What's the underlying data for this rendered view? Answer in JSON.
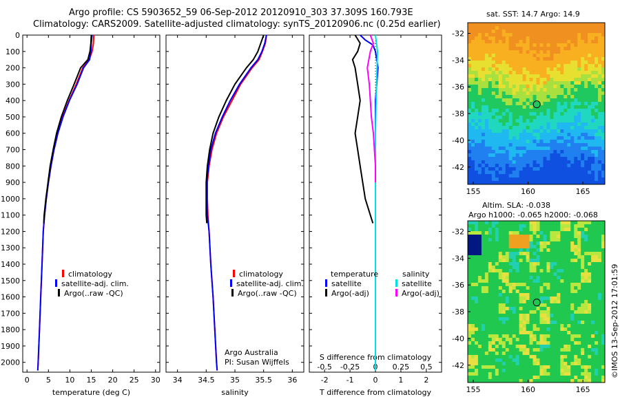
{
  "header": {
    "line1": "Argo profile: CS 5903652_59 06-Sep-2012 20120910_303 37.309S 160.793E",
    "line2": "Climatology: CARS2009. Satellite-adjusted climatology: synTS_20120906.nc (0.25d earlier)"
  },
  "colors": {
    "climatology": "#ff0000",
    "satellite": "#0000ff",
    "argo": "#000000",
    "cyan": "#00e0e0",
    "magenta": "#ff00ff"
  },
  "depth_ticks": [
    "0",
    "100",
    "200",
    "300",
    "400",
    "500",
    "600",
    "700",
    "800",
    "900",
    "1000",
    "1100",
    "1200",
    "1300",
    "1400",
    "1500",
    "1600",
    "1700",
    "1800",
    "1900",
    "2000"
  ],
  "legend_main": {
    "climatology": "climatology",
    "satellite": "satellite-adj. clim.",
    "argo": "Argo(..raw -QC)"
  },
  "credit": {
    "line1": "Argo Australia",
    "line2": "PI: Susan Wijffels"
  },
  "legend_diff": {
    "temperature": "temperature",
    "salinity": "salinity",
    "satellite": "satellite",
    "argo": "Argo(-adj)"
  },
  "chart_data": [
    {
      "type": "line",
      "xlabel": "temperature (deg C)",
      "ylabel": "",
      "xlim": [
        -1,
        31
      ],
      "ylim": [
        2060,
        0
      ],
      "x_ticks": [
        "0",
        "5",
        "10",
        "15",
        "20",
        "25",
        "30"
      ],
      "series": [
        {
          "name": "climatology",
          "points": [
            [
              15.6,
              0
            ],
            [
              15.5,
              50
            ],
            [
              15.2,
              100
            ],
            [
              14.5,
              150
            ],
            [
              13.0,
              200
            ],
            [
              11.5,
              300
            ],
            [
              9.8,
              400
            ],
            [
              8.3,
              500
            ],
            [
              7.2,
              600
            ],
            [
              6.3,
              700
            ],
            [
              5.6,
              800
            ],
            [
              5.0,
              900
            ],
            [
              4.5,
              1000
            ],
            [
              4.1,
              1100
            ],
            [
              3.8,
              1200
            ],
            [
              3.5,
              1400
            ],
            [
              3.2,
              1600
            ],
            [
              2.9,
              1800
            ],
            [
              2.6,
              2000
            ],
            [
              2.5,
              2050
            ]
          ]
        },
        {
          "name": "satellite-adj. clim.",
          "points": [
            [
              15.2,
              0
            ],
            [
              15.0,
              50
            ],
            [
              14.9,
              100
            ],
            [
              14.6,
              150
            ],
            [
              13.2,
              200
            ],
            [
              11.7,
              300
            ],
            [
              9.9,
              400
            ],
            [
              8.4,
              500
            ],
            [
              7.2,
              600
            ],
            [
              6.3,
              700
            ],
            [
              5.6,
              800
            ],
            [
              5.0,
              900
            ],
            [
              4.5,
              1000
            ],
            [
              4.1,
              1100
            ],
            [
              3.8,
              1200
            ],
            [
              3.5,
              1400
            ],
            [
              3.2,
              1600
            ],
            [
              2.9,
              1800
            ],
            [
              2.6,
              2000
            ],
            [
              2.5,
              2050
            ]
          ]
        },
        {
          "name": "Argo(..raw -QC)",
          "points": [
            [
              15.0,
              0
            ],
            [
              14.9,
              50
            ],
            [
              14.7,
              100
            ],
            [
              14.2,
              150
            ],
            [
              12.5,
              200
            ],
            [
              11.0,
              300
            ],
            [
              9.4,
              400
            ],
            [
              8.0,
              500
            ],
            [
              6.9,
              600
            ],
            [
              6.1,
              700
            ],
            [
              5.4,
              800
            ],
            [
              4.9,
              900
            ],
            [
              4.4,
              1000
            ],
            [
              4.0,
              1100
            ],
            [
              3.9,
              1150
            ]
          ]
        }
      ]
    },
    {
      "type": "line",
      "xlabel": "salinity",
      "ylabel": "",
      "xlim": [
        33.8,
        36.2
      ],
      "ylim": [
        2060,
        0
      ],
      "x_ticks": [
        "34",
        "34.5",
        "35",
        "35.5",
        "36"
      ],
      "series": [
        {
          "name": "climatology",
          "points": [
            [
              35.55,
              0
            ],
            [
              35.53,
              50
            ],
            [
              35.48,
              100
            ],
            [
              35.42,
              150
            ],
            [
              35.3,
              200
            ],
            [
              35.1,
              300
            ],
            [
              34.95,
              400
            ],
            [
              34.8,
              500
            ],
            [
              34.68,
              600
            ],
            [
              34.6,
              700
            ],
            [
              34.55,
              800
            ],
            [
              34.52,
              900
            ],
            [
              34.52,
              1000
            ],
            [
              34.53,
              1100
            ],
            [
              34.55,
              1200
            ],
            [
              34.58,
              1400
            ],
            [
              34.62,
              1600
            ],
            [
              34.65,
              1800
            ],
            [
              34.68,
              2000
            ],
            [
              34.69,
              2050
            ]
          ]
        },
        {
          "name": "satellite-adj. clim.",
          "points": [
            [
              35.55,
              0
            ],
            [
              35.52,
              50
            ],
            [
              35.47,
              100
            ],
            [
              35.4,
              150
            ],
            [
              35.28,
              200
            ],
            [
              35.08,
              300
            ],
            [
              34.92,
              400
            ],
            [
              34.78,
              500
            ],
            [
              34.66,
              600
            ],
            [
              34.58,
              700
            ],
            [
              34.54,
              800
            ],
            [
              34.51,
              900
            ],
            [
              34.51,
              1000
            ],
            [
              34.52,
              1100
            ],
            [
              34.55,
              1200
            ],
            [
              34.58,
              1400
            ],
            [
              34.62,
              1600
            ],
            [
              34.65,
              1800
            ],
            [
              34.68,
              2000
            ],
            [
              34.69,
              2050
            ]
          ]
        },
        {
          "name": "Argo(..raw -QC)",
          "points": [
            [
              35.5,
              0
            ],
            [
              35.45,
              50
            ],
            [
              35.4,
              100
            ],
            [
              35.32,
              150
            ],
            [
              35.2,
              200
            ],
            [
              35.0,
              300
            ],
            [
              34.85,
              400
            ],
            [
              34.72,
              500
            ],
            [
              34.62,
              600
            ],
            [
              34.56,
              700
            ],
            [
              34.52,
              800
            ],
            [
              34.5,
              900
            ],
            [
              34.5,
              1000
            ],
            [
              34.5,
              1100
            ],
            [
              34.51,
              1150
            ]
          ]
        }
      ]
    },
    {
      "type": "line",
      "xlabel": "T difference from climatology",
      "xlabel2": "S difference from climatology",
      "ylabel": "",
      "xlim": [
        -2.6,
        2.6
      ],
      "ylim": [
        2060,
        0
      ],
      "x_ticks": [
        "-2",
        "-1",
        "0",
        "1",
        "2"
      ],
      "x2_ticks": [
        "-0.5",
        "-0.25",
        "0",
        "0.25",
        "0.5"
      ],
      "series": [
        {
          "name": "temperature satellite",
          "points": [
            [
              -0.6,
              0
            ],
            [
              -0.4,
              30
            ],
            [
              -0.1,
              60
            ],
            [
              0.0,
              100
            ],
            [
              0.1,
              200
            ],
            [
              0.0,
              400
            ],
            [
              0.0,
              800
            ],
            [
              0.0,
              1200
            ],
            [
              0.0,
              1600
            ],
            [
              0.0,
              2050
            ]
          ]
        },
        {
          "name": "temperature Argo(-adj)",
          "points": [
            [
              -0.8,
              0
            ],
            [
              -0.6,
              50
            ],
            [
              -0.7,
              100
            ],
            [
              -0.9,
              150
            ],
            [
              -0.8,
              200
            ],
            [
              -0.7,
              300
            ],
            [
              -0.6,
              400
            ],
            [
              -0.7,
              500
            ],
            [
              -0.8,
              600
            ],
            [
              -0.7,
              700
            ],
            [
              -0.6,
              800
            ],
            [
              -0.5,
              900
            ],
            [
              -0.4,
              1000
            ],
            [
              -0.2,
              1100
            ],
            [
              -0.1,
              1150
            ]
          ]
        },
        {
          "name": "salinity satellite",
          "points": [
            [
              0.0,
              0
            ],
            [
              0.02,
              100
            ],
            [
              0.01,
              300
            ],
            [
              0.0,
              600
            ],
            [
              0.0,
              1000
            ],
            [
              0.0,
              1500
            ],
            [
              0.0,
              2050
            ]
          ]
        },
        {
          "name": "salinity Argo(-adj)",
          "points": [
            [
              -0.05,
              0
            ],
            [
              -0.02,
              50
            ],
            [
              -0.05,
              100
            ],
            [
              -0.08,
              200
            ],
            [
              -0.06,
              300
            ],
            [
              -0.05,
              400
            ],
            [
              -0.04,
              500
            ],
            [
              -0.02,
              600
            ],
            [
              -0.01,
              700
            ],
            [
              0.0,
              800
            ],
            [
              0.0,
              900
            ]
          ]
        }
      ]
    },
    {
      "type": "heatmap",
      "title": "sat. SST: 14.7 Argo: 14.9",
      "x_ticks": [
        "155",
        "160",
        "165"
      ],
      "y_ticks": [
        "-32",
        "-34",
        "-36",
        "-38",
        "-40",
        "-42"
      ]
    },
    {
      "type": "heatmap",
      "title": "Altim. SLA: -0.038",
      "subtitle": "Argo h1000: -0.065 h2000: -0.068",
      "x_ticks": [
        "155",
        "160",
        "165"
      ],
      "y_ticks": [
        "-32",
        "-34",
        "-36",
        "-38",
        "-40",
        "-42"
      ]
    }
  ],
  "side_label": "©IMOS 13-Sep-2012 17:01:59"
}
